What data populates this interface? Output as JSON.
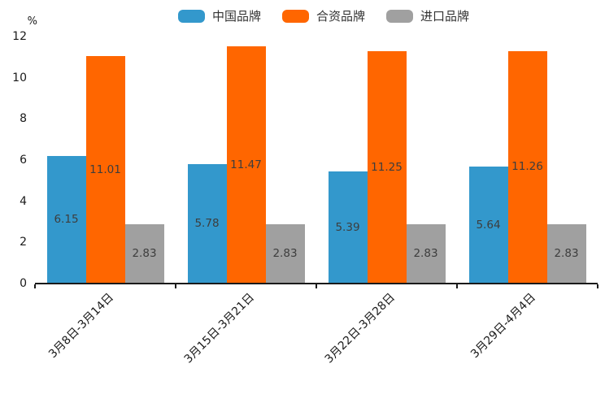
{
  "chart_data": {
    "type": "bar",
    "title": "",
    "ylabel": "%",
    "ylim": [
      0,
      12
    ],
    "yticks": [
      0,
      2,
      4,
      6,
      8,
      10,
      12
    ],
    "categories": [
      "3月8日-3月14日",
      "3月15日-3月21日",
      "3月22日-3月28日",
      "3月29日-4月4日"
    ],
    "series": [
      {
        "name": "中国品牌",
        "slug": "china-brands",
        "color": "#3398cc",
        "values": [
          6.15,
          5.78,
          5.39,
          5.64
        ]
      },
      {
        "name": "合资品牌",
        "slug": "joint-venture-brands",
        "color": "#ff6600",
        "values": [
          11.01,
          11.47,
          11.25,
          11.26
        ]
      },
      {
        "name": "进口品牌",
        "slug": "imported-brands",
        "color": "#a0a0a0",
        "values": [
          2.83,
          2.83,
          2.83,
          2.83
        ]
      }
    ],
    "legend_position": "top",
    "grid": false,
    "value_labels": true,
    "colors": {
      "axis": "#1a1a1a",
      "value_label_text": "#3d3d3d",
      "legend_text": "#333333"
    }
  }
}
